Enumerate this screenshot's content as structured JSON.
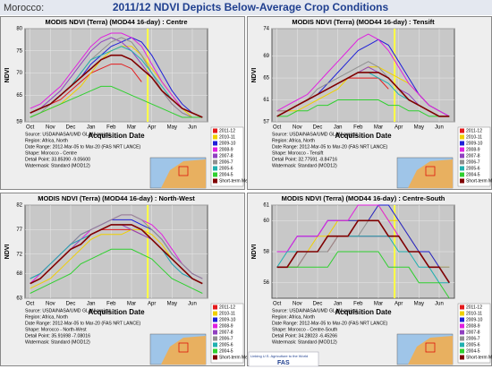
{
  "header": {
    "region": "Morocco:",
    "title": "2011/12 NDVI Depicts Below-Average Crop Conditions"
  },
  "footer": {
    "tagline": "Linking U.S. Agriculture to the World",
    "logo": "FAS"
  },
  "chart_data": [
    {
      "type": "line",
      "title": "MODIS NDVI (Terra) (MOD44 16-day) : Centre",
      "xlabel": "Acquisition Date",
      "ylabel": "NDVI",
      "categories": [
        "Oct",
        null,
        "Nov",
        null,
        "Dec",
        null,
        "Jan",
        null,
        "Feb",
        null,
        "Mar",
        null,
        "Apr",
        null,
        "May",
        null,
        "Jun",
        null
      ],
      "ylim": [
        59,
        80
      ],
      "yticks": [
        59,
        65,
        70,
        75,
        80
      ],
      "grid": true,
      "notes": [
        "Source: USDA/NASA/UMD GLAM project",
        "Region: Africa, North",
        "Date Range: 2012-Mar-05 to Mar-20 (FAS NRT LANCE)",
        "Shape: Morocco - Centre",
        "Detail Point: 33.85390 -9.05600",
        "Watermask: Standard (MOD12)"
      ],
      "series": [
        {
          "name": "2011-12",
          "color": "#e41a1c",
          "values": [
            61,
            62,
            63,
            64,
            66,
            68,
            70,
            71,
            72,
            72,
            71,
            68,
            null,
            null,
            null,
            null,
            null,
            null
          ]
        },
        {
          "name": "2010-11",
          "color": "#f0d000",
          "values": [
            60,
            61,
            62,
            63,
            65,
            67,
            70,
            73,
            75,
            76,
            76,
            74,
            71,
            68,
            65,
            62,
            60,
            60
          ]
        },
        {
          "name": "2009-10",
          "color": "#1f1fd8",
          "values": [
            61,
            62,
            63,
            65,
            67,
            69,
            72,
            74,
            76,
            77,
            78,
            77,
            74,
            70,
            66,
            63,
            61,
            60
          ]
        },
        {
          "name": "2008-9",
          "color": "#e020e0",
          "values": [
            62,
            63,
            65,
            67,
            70,
            73,
            76,
            78,
            79,
            79,
            78,
            76,
            72,
            68,
            65,
            62,
            61,
            60
          ]
        },
        {
          "name": "2007-8",
          "color": "#9040c0",
          "values": [
            61,
            62,
            64,
            66,
            69,
            72,
            75,
            77,
            78,
            77,
            75,
            72,
            69,
            66,
            63,
            61,
            60,
            60
          ]
        },
        {
          "name": "2006-7",
          "color": "#909090",
          "values": [
            60,
            61,
            63,
            65,
            67,
            70,
            73,
            75,
            77,
            78,
            77,
            74,
            70,
            66,
            63,
            61,
            60,
            60
          ]
        },
        {
          "name": "2005-6",
          "color": "#20b0b0",
          "values": [
            61,
            62,
            63,
            65,
            67,
            70,
            73,
            74,
            75,
            76,
            75,
            73,
            70,
            67,
            64,
            62,
            61,
            60
          ]
        },
        {
          "name": "2004-5",
          "color": "#30d030",
          "values": [
            60,
            61,
            62,
            63,
            64,
            65,
            66,
            67,
            67,
            66,
            65,
            64,
            63,
            62,
            61,
            60,
            60,
            60
          ]
        },
        {
          "name": "Short-term Mean",
          "color": "#800000",
          "values": [
            61,
            62,
            63,
            65,
            67,
            69,
            71,
            73,
            74,
            74,
            73,
            71,
            69,
            66,
            64,
            62,
            61,
            60
          ]
        }
      ]
    },
    {
      "type": "line",
      "title": "MODIS NDVI (Terra) (MOD44 16-day) : Tensift",
      "xlabel": "Acquisition Date",
      "ylabel": "NDVI",
      "categories": [
        "Oct",
        null,
        "Nov",
        null,
        "Dec",
        null,
        "Jan",
        null,
        "Feb",
        null,
        "Mar",
        null,
        "Apr",
        null,
        "May",
        null,
        "Jun",
        null
      ],
      "ylim": [
        57,
        74
      ],
      "yticks": [
        57,
        61,
        65,
        69,
        74
      ],
      "grid": true,
      "notes": [
        "Source: USDA/NASA/UMD GLAM project",
        "Region: Africa, North",
        "Date Range: 2012-Mar-05 to Mar-20 (FAS NRT LANCE)",
        "Shape: Morocco - Tensift",
        "Detail Point: 32.77591 -8.84716",
        "Watermask: Standard (MOD12)"
      ],
      "series": [
        {
          "name": "2011-12",
          "color": "#e41a1c",
          "values": [
            59,
            59,
            60,
            61,
            62,
            63,
            64,
            65,
            65,
            65,
            65,
            63,
            null,
            null,
            null,
            null,
            null,
            null
          ]
        },
        {
          "name": "2010-11",
          "color": "#f0d000",
          "values": [
            58,
            59,
            59,
            60,
            61,
            62,
            63,
            65,
            66,
            67,
            67,
            66,
            65,
            64,
            62,
            60,
            59,
            58
          ]
        },
        {
          "name": "2009-10",
          "color": "#1f1fd8",
          "values": [
            58,
            59,
            60,
            61,
            62,
            64,
            66,
            68,
            70,
            71,
            72,
            71,
            68,
            65,
            62,
            60,
            59,
            58
          ]
        },
        {
          "name": "2008-9",
          "color": "#e020e0",
          "values": [
            59,
            60,
            61,
            62,
            64,
            66,
            68,
            70,
            72,
            73,
            72,
            70,
            67,
            64,
            62,
            60,
            59,
            58
          ]
        },
        {
          "name": "2007-8",
          "color": "#9040c0",
          "values": [
            58,
            59,
            60,
            61,
            62,
            63,
            64,
            65,
            66,
            67,
            66,
            65,
            63,
            62,
            60,
            59,
            58,
            58
          ]
        },
        {
          "name": "2006-7",
          "color": "#909090",
          "values": [
            59,
            59,
            60,
            61,
            63,
            64,
            65,
            66,
            67,
            68,
            67,
            65,
            63,
            61,
            60,
            59,
            58,
            58
          ]
        },
        {
          "name": "2005-6",
          "color": "#20b0b0",
          "values": [
            58,
            59,
            60,
            61,
            62,
            63,
            64,
            65,
            66,
            66,
            65,
            64,
            62,
            61,
            60,
            59,
            58,
            58
          ]
        },
        {
          "name": "2004-5",
          "color": "#30d030",
          "values": [
            58,
            58,
            59,
            59,
            60,
            60,
            61,
            61,
            61,
            61,
            61,
            60,
            60,
            59,
            59,
            58,
            58,
            58
          ]
        },
        {
          "name": "Short-term Mean",
          "color": "#800000",
          "values": [
            58,
            59,
            60,
            61,
            62,
            63,
            64,
            65,
            66,
            66,
            66,
            65,
            63,
            61,
            60,
            59,
            58,
            58
          ]
        }
      ]
    },
    {
      "type": "line",
      "title": "MODIS NDVI (Terra) (MOD44 16-day) : North-West",
      "xlabel": "Acquisition Date",
      "ylabel": "NDVI",
      "categories": [
        "Oct",
        null,
        "Nov",
        null,
        "Dec",
        null,
        "Jan",
        null,
        "Feb",
        null,
        "Mar",
        null,
        "Apr",
        null,
        "May",
        null,
        "Jun",
        null
      ],
      "ylim": [
        63,
        82
      ],
      "yticks": [
        63,
        68,
        72,
        77,
        82
      ],
      "grid": true,
      "notes": [
        "Source: USDA/NASA/UMD GLAM project",
        "Region: Africa, North",
        "Date Range: 2012-Mar-05 to Mar-20 (FAS NRT LANCE)",
        "Shape: Morocco - North-West",
        "Detail Point: 35.91698 -7.08016",
        "Watermask: Standard (MOD12)"
      ],
      "series": [
        {
          "name": "2011-12",
          "color": "#e41a1c",
          "values": [
            66,
            67,
            69,
            71,
            73,
            74,
            76,
            77,
            77,
            77,
            77,
            76,
            null,
            null,
            null,
            null,
            null,
            null
          ]
        },
        {
          "name": "2010-11",
          "color": "#f0d000",
          "values": [
            65,
            66,
            67,
            69,
            71,
            73,
            75,
            76,
            76,
            76,
            77,
            77,
            76,
            74,
            71,
            69,
            67,
            66
          ]
        },
        {
          "name": "2009-10",
          "color": "#1f1fd8",
          "values": [
            67,
            68,
            70,
            72,
            74,
            76,
            77,
            78,
            79,
            79,
            79,
            78,
            77,
            75,
            72,
            70,
            68,
            67
          ]
        },
        {
          "name": "2008-9",
          "color": "#e020e0",
          "values": [
            66,
            68,
            70,
            72,
            74,
            75,
            77,
            78,
            79,
            80,
            80,
            79,
            78,
            76,
            73,
            70,
            68,
            67
          ]
        },
        {
          "name": "2007-8",
          "color": "#9040c0",
          "values": [
            66,
            67,
            69,
            71,
            73,
            75,
            76,
            77,
            78,
            78,
            77,
            76,
            75,
            73,
            70,
            68,
            67,
            66
          ]
        },
        {
          "name": "2006-7",
          "color": "#909090",
          "values": [
            67,
            68,
            70,
            72,
            74,
            76,
            77,
            78,
            79,
            80,
            80,
            79,
            77,
            75,
            72,
            70,
            68,
            67
          ]
        },
        {
          "name": "2005-6",
          "color": "#20b0b0",
          "values": [
            67,
            68,
            70,
            72,
            74,
            75,
            76,
            77,
            78,
            78,
            78,
            77,
            75,
            73,
            70,
            68,
            67,
            66
          ]
        },
        {
          "name": "2004-5",
          "color": "#30d030",
          "values": [
            64,
            65,
            66,
            67,
            68,
            70,
            71,
            72,
            73,
            73,
            73,
            72,
            71,
            69,
            67,
            66,
            65,
            64
          ]
        },
        {
          "name": "Short-term Mean",
          "color": "#800000",
          "values": [
            66,
            67,
            69,
            71,
            73,
            74,
            76,
            77,
            78,
            78,
            78,
            77,
            75,
            73,
            71,
            69,
            67,
            66
          ]
        }
      ]
    },
    {
      "type": "line",
      "title": "MODIS NDVI (Terra) (MOD44 16-day) : Centre-South",
      "xlabel": "Acquisition Date",
      "ylabel": "NDVI",
      "categories": [
        "Oct",
        null,
        "Nov",
        null,
        "Dec",
        null,
        "Jan",
        null,
        "Feb",
        null,
        "Mar",
        null,
        "Apr",
        null,
        "May",
        null,
        "Jun",
        null
      ],
      "ylim": [
        55,
        61
      ],
      "yticks": [
        56,
        58,
        60,
        61
      ],
      "grid": true,
      "notes": [
        "Source: USDA/NASA/UMD GLAM project",
        "Region: Africa, North",
        "Date Range: 2012-Mar-05 to Mar-20 (FAS NRT LANCE)",
        "Shape: Morocco - Centre-South",
        "Detail Point: 34.28023 -6.45266",
        "Watermask: Standard (MOD12)"
      ],
      "series": [
        {
          "name": "2011-12",
          "color": "#e41a1c",
          "values": [
            57,
            57,
            57,
            58,
            58,
            58,
            59,
            59,
            59,
            59,
            59,
            59,
            null,
            null,
            null,
            null,
            null,
            null
          ]
        },
        {
          "name": "2010-11",
          "color": "#f0d000",
          "values": [
            57,
            57,
            58,
            58,
            59,
            59,
            60,
            60,
            60,
            60,
            61,
            60,
            60,
            59,
            58,
            58,
            57,
            57
          ]
        },
        {
          "name": "2009-10",
          "color": "#1f1fd8",
          "values": [
            58,
            58,
            59,
            59,
            59,
            60,
            60,
            60,
            60,
            60,
            61,
            61,
            60,
            59,
            58,
            58,
            57,
            56
          ]
        },
        {
          "name": "2008-9",
          "color": "#e020e0",
          "values": [
            58,
            58,
            59,
            59,
            59,
            60,
            60,
            60,
            61,
            61,
            61,
            60,
            59,
            58,
            58,
            57,
            57,
            56
          ]
        },
        {
          "name": "2007-8",
          "color": "#9040c0",
          "values": [
            57,
            57,
            58,
            58,
            58,
            59,
            59,
            59,
            59,
            59,
            59,
            59,
            59,
            58,
            58,
            57,
            57,
            56
          ]
        },
        {
          "name": "2006-7",
          "color": "#909090",
          "values": [
            57,
            57,
            57,
            58,
            58,
            58,
            59,
            59,
            59,
            60,
            60,
            59,
            59,
            58,
            58,
            57,
            57,
            57
          ]
        },
        {
          "name": "2005-6",
          "color": "#20b0b0",
          "values": [
            57,
            58,
            58,
            58,
            58,
            59,
            59,
            59,
            59,
            59,
            59,
            59,
            58,
            58,
            57,
            57,
            56,
            56
          ]
        },
        {
          "name": "2004-5",
          "color": "#30d030",
          "values": [
            57,
            57,
            57,
            57,
            57,
            57,
            58,
            58,
            58,
            58,
            58,
            57,
            57,
            57,
            56,
            56,
            56,
            55
          ]
        },
        {
          "name": "Short-term Mean",
          "color": "#800000",
          "values": [
            57,
            57,
            58,
            58,
            58,
            59,
            59,
            59,
            60,
            60,
            60,
            59,
            59,
            58,
            58,
            57,
            57,
            56
          ]
        }
      ]
    }
  ]
}
